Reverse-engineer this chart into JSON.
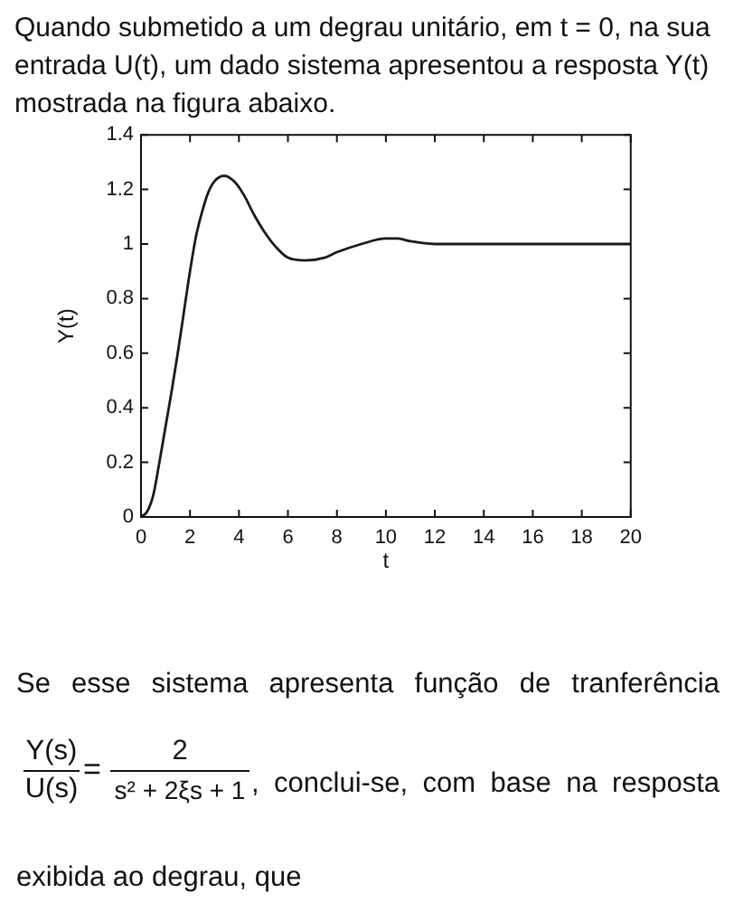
{
  "chart_data": {
    "type": "line",
    "xlabel": "t",
    "ylabel": "Y(t)",
    "annotations": [
      "Quando submetido a um degrau unitário, em t = 0, na sua entrada U(t), um dado sistema apresentou a resposta Y(t) mostrada na figura abaixo.",
      "Se esse sistema apresenta função de tranferência",
      "Y(s)",
      "U(s)",
      "=",
      "2",
      "s² + 2ξs + 1",
      ", conclui-se, com base na resposta",
      "exibida ao degrau, que"
    ],
    "x": [
      0,
      0.25,
      0.5,
      0.75,
      1,
      1.25,
      1.5,
      1.75,
      2,
      2.25,
      2.5,
      2.75,
      3,
      3.4,
      3.8,
      4.2,
      4.6,
      5,
      5.5,
      6,
      6.7,
      7.5,
      8,
      9,
      10,
      10.5,
      11,
      12,
      13,
      14,
      15,
      16,
      18,
      20
    ],
    "values": [
      0,
      0.02,
      0.08,
      0.2,
      0.33,
      0.46,
      0.6,
      0.75,
      0.9,
      1.03,
      1.12,
      1.19,
      1.23,
      1.25,
      1.23,
      1.18,
      1.11,
      1.05,
      0.99,
      0.95,
      0.94,
      0.95,
      0.97,
      1.0,
      1.02,
      1.02,
      1.01,
      1.0,
      1.0,
      1.0,
      1.0,
      1.0,
      1.0,
      1.0
    ],
    "color": "#1a1a1a",
    "marker": "none",
    "line_style": "solid",
    "xlim": [
      0,
      20
    ],
    "xticks": [
      0,
      2,
      4,
      6,
      8,
      10,
      12,
      14,
      16,
      18,
      20
    ],
    "ylim": [
      0,
      1.4
    ],
    "yticks": [
      0,
      0.2,
      0.4,
      0.6,
      0.8,
      1,
      1.2,
      1.4
    ]
  }
}
